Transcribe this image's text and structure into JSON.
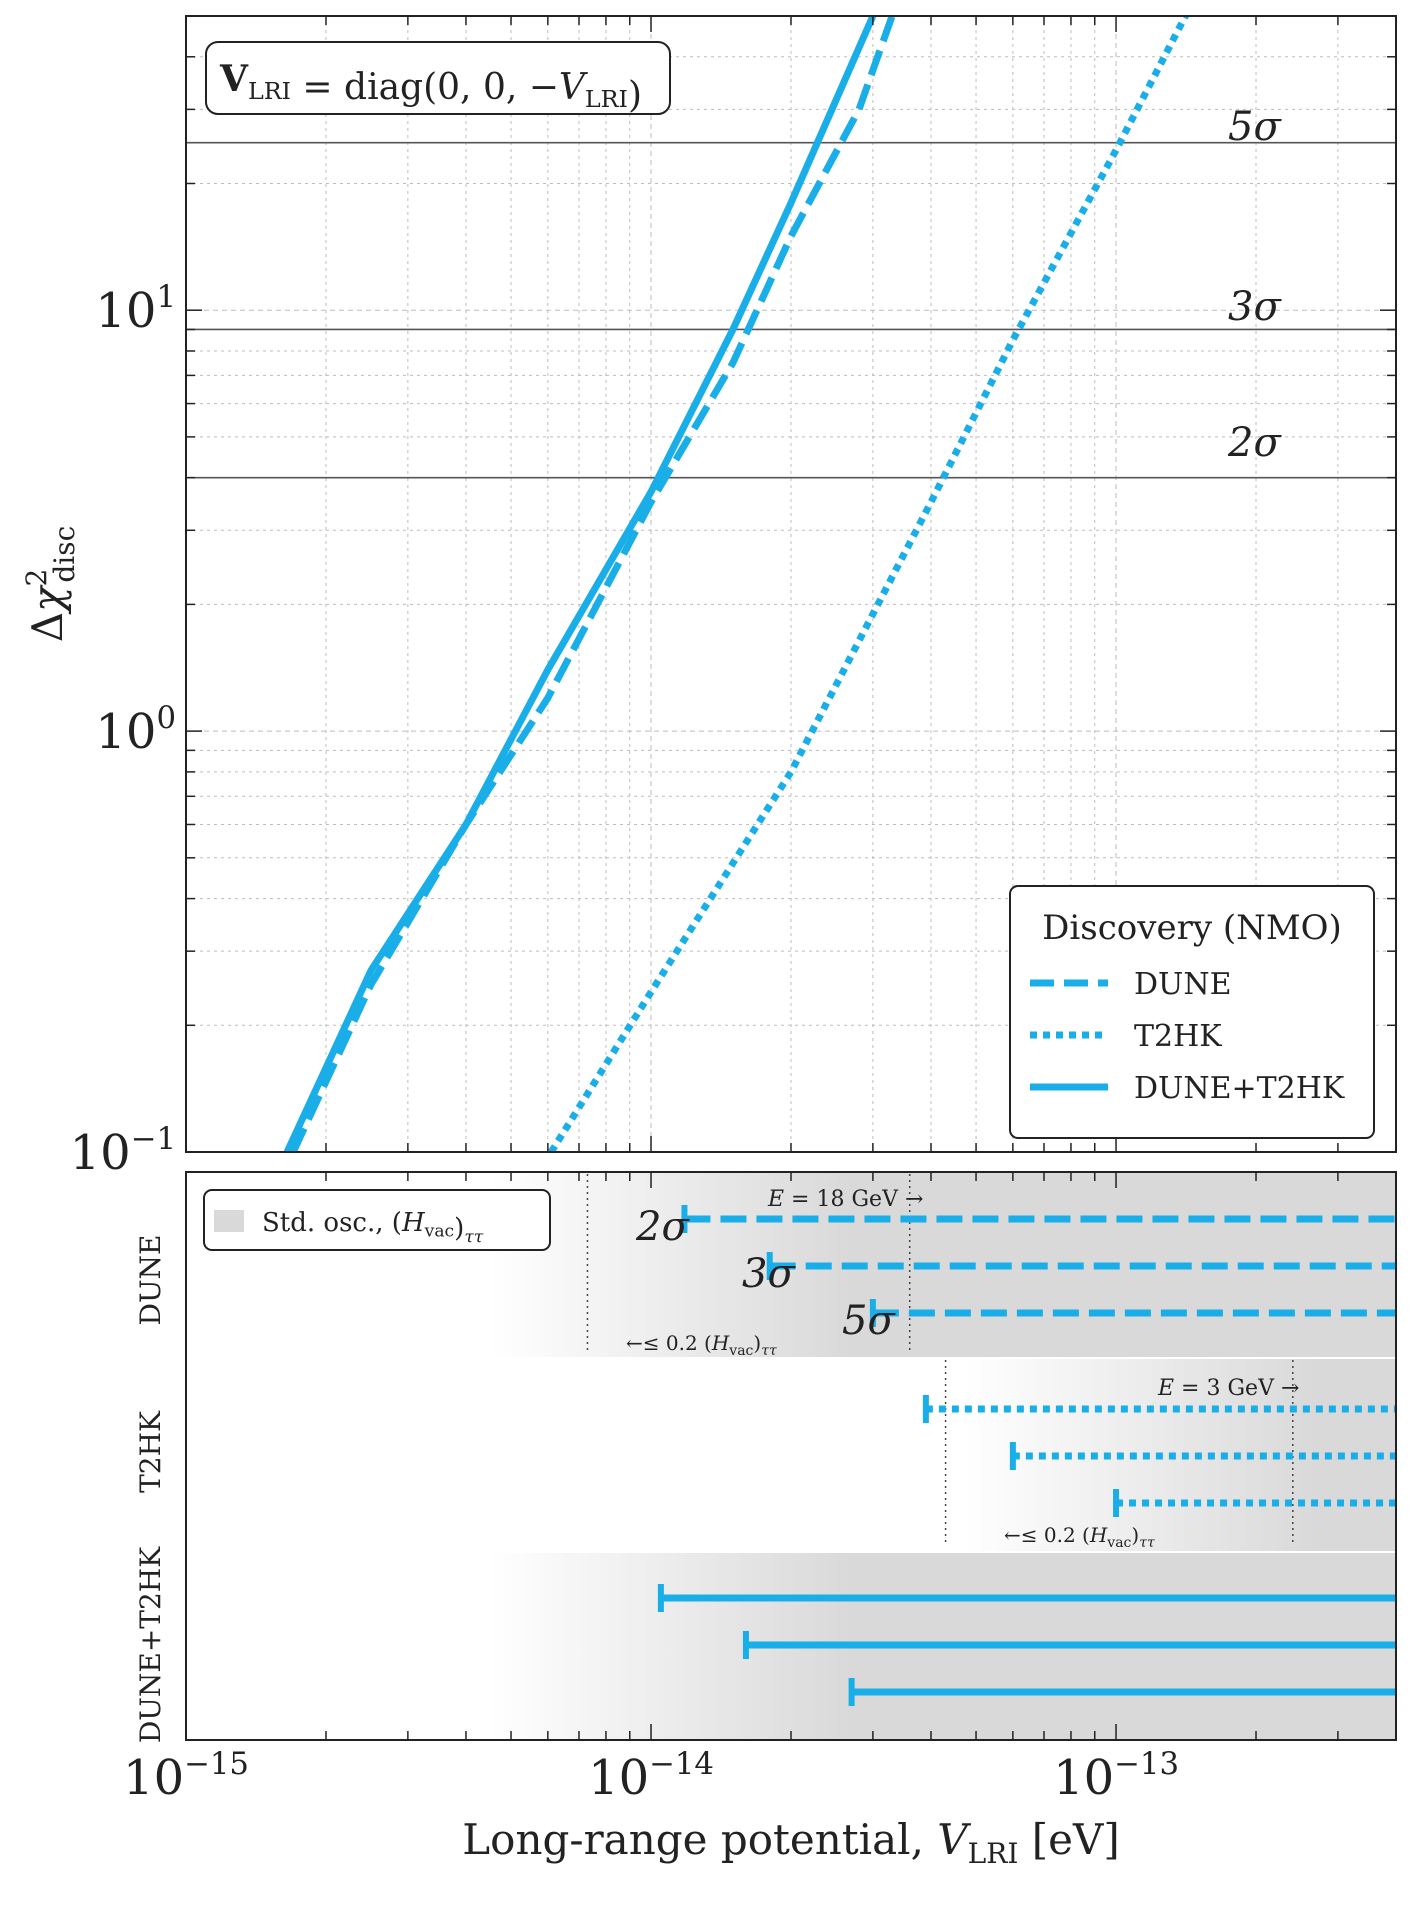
{
  "colors": {
    "series": "#19aee8",
    "hline": "#555555",
    "grid": "#bdbdbd",
    "box_border": "#222222",
    "shade": "#d9d9d9"
  },
  "top_box": {
    "parts": [
      {
        "text": "V",
        "bold": true
      },
      {
        "text": "LRI",
        "sub": true
      },
      {
        "text": " = diag(0, 0, −"
      },
      {
        "text": "V",
        "italic": true
      },
      {
        "text": "LRI",
        "sub": true
      },
      {
        "text": ")"
      }
    ]
  },
  "legend": {
    "title": "Discovery (NMO)",
    "items": [
      {
        "label": "DUNE",
        "style": "dashed"
      },
      {
        "label": "T2HK",
        "style": "dotted"
      },
      {
        "label": "DUNE+T2HK",
        "style": "solid"
      }
    ]
  },
  "bottom_legend": {
    "parts": [
      {
        "text": "Std. osc., ("
      },
      {
        "text": "H",
        "italic": true
      },
      {
        "text": "vac",
        "sub": true
      },
      {
        "text": ")"
      },
      {
        "text": "ττ",
        "sub": true,
        "italic": true
      }
    ]
  },
  "annotations": {
    "dune_energy": "E = 18 GeV →",
    "dune_frac": "←≤ 0.2 (H_vac)_ττ",
    "t2hk_energy": "E = 3 GeV →",
    "t2hk_frac": "←≤ 0.2 (H_vac)_ττ"
  },
  "chart_data": [
    {
      "type": "line",
      "xscale": "log",
      "yscale": "log",
      "xlim": [
        1e-15,
        4e-13
      ],
      "ylim": [
        0.1,
        50
      ],
      "xlabel": "",
      "ylabel": "Δχ²_disc",
      "x_tick_labels": [
        "10^−15",
        "10^−14",
        "10^−13"
      ],
      "y_tick_labels": [
        "10^−1",
        "10^0",
        "10^1"
      ],
      "grid": true,
      "legend_position": "bottom-right",
      "series": [
        {
          "name": "DUNE",
          "style": "dashed",
          "x": [
            1.7e-15,
            2.5e-15,
            4e-15,
            6e-15,
            1e-14,
            1.5e-14,
            2e-14,
            2.8e-14,
            3.3e-14
          ],
          "y": [
            0.1,
            0.25,
            0.6,
            1.2,
            3.5,
            7.5,
            15,
            30,
            50
          ]
        },
        {
          "name": "T2HK",
          "style": "dotted",
          "x": [
            6.1e-15,
            1e-14,
            2e-14,
            4e-14,
            6e-14,
            1e-13,
            1.65e-13
          ],
          "y": [
            0.1,
            0.24,
            0.8,
            3.5,
            8.5,
            24,
            70
          ]
        },
        {
          "name": "DUNE+T2HK",
          "style": "solid",
          "x": [
            1.65e-15,
            2.5e-15,
            4e-15,
            6e-15,
            1e-14,
            1.5e-14,
            2e-14,
            3e-14
          ],
          "y": [
            0.1,
            0.27,
            0.6,
            1.4,
            3.7,
            9,
            18,
            50
          ]
        }
      ],
      "reference_lines": [
        {
          "y": 4,
          "label": "2σ"
        },
        {
          "y": 9,
          "label": "3σ"
        },
        {
          "y": 25,
          "label": "5σ"
        }
      ]
    },
    {
      "type": "bar",
      "xscale": "log",
      "xlim": [
        1e-15,
        4e-13
      ],
      "xlabel": "Long-range potential, V_LRI [eV]",
      "x_tick_labels": [
        "10^−15",
        "10^−14",
        "10^−13"
      ],
      "rows": [
        {
          "name": "DUNE",
          "style": "dashed",
          "thresholds": [
            {
              "label": "2σ",
              "x": 1.18e-14
            },
            {
              "label": "3σ",
              "x": 1.8e-14
            },
            {
              "label": "5σ",
              "x": 3e-14
            }
          ],
          "markers": {
            "frac_x": 7.3e-15,
            "energy_x": 3.6e-14
          }
        },
        {
          "name": "T2HK",
          "style": "dotted",
          "thresholds": [
            {
              "label": "2σ",
              "x": 3.9e-14
            },
            {
              "label": "3σ",
              "x": 6e-14
            },
            {
              "label": "5σ",
              "x": 1e-13
            }
          ],
          "markers": {
            "frac_x": 4.3e-14,
            "energy_x": 2.4e-13
          }
        },
        {
          "name": "DUNE+T2HK",
          "style": "solid",
          "thresholds": [
            {
              "label": "2σ",
              "x": 1.05e-14
            },
            {
              "label": "3σ",
              "x": 1.6e-14
            },
            {
              "label": "5σ",
              "x": 2.7e-14
            }
          ]
        }
      ]
    }
  ]
}
